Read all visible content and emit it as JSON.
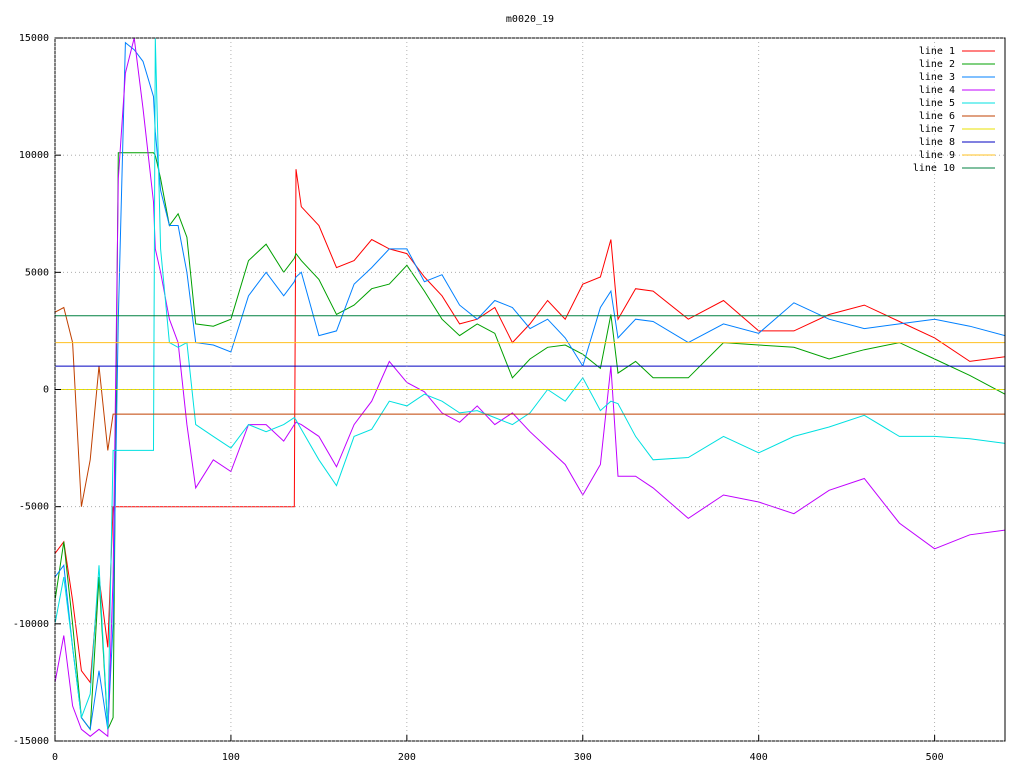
{
  "chart_data": {
    "type": "line",
    "title": "m0020_19",
    "x": [
      0,
      5,
      10,
      15,
      20,
      25,
      30,
      33,
      36,
      40,
      45,
      50,
      56,
      57,
      60,
      65,
      70,
      75,
      80,
      90,
      100,
      110,
      120,
      130,
      136,
      137,
      140,
      150,
      160,
      170,
      180,
      190,
      200,
      210,
      220,
      230,
      240,
      250,
      260,
      270,
      280,
      290,
      300,
      310,
      316,
      320,
      330,
      340,
      360,
      380,
      400,
      420,
      440,
      460,
      480,
      500,
      520,
      540
    ],
    "xlim": [
      0,
      540
    ],
    "ylim": [
      -15000,
      15000
    ],
    "xticks": [
      0,
      100,
      200,
      300,
      400,
      500
    ],
    "yticks": [
      -15000,
      -10000,
      -5000,
      0,
      5000,
      10000,
      15000
    ],
    "grid": true,
    "legend": "top-right",
    "series": [
      {
        "name": "line 1",
        "color": "#ff0000",
        "values": [
          -7000,
          -6500,
          -9000,
          -12000,
          -12500,
          -8000,
          -11000,
          -5000,
          -5000,
          -5000,
          -5000,
          -5000,
          -5000,
          -5000,
          -5000,
          -5000,
          -5000,
          -5000,
          -5000,
          -5000,
          -5000,
          -5000,
          -5000,
          -5000,
          -5000,
          9400,
          7800,
          7000,
          5200,
          5500,
          6400,
          6000,
          5800,
          4800,
          4000,
          2800,
          3000,
          3500,
          2000,
          2800,
          3800,
          3000,
          4500,
          4800,
          6400,
          3000,
          4300,
          4200,
          3000,
          3800,
          2500,
          2500,
          3200,
          3600,
          2900,
          2200,
          1200,
          1400
        ]
      },
      {
        "name": "line 2",
        "color": "#00a000",
        "values": [
          -9000,
          -6500,
          -10000,
          -14000,
          -14500,
          -8000,
          -14500,
          -14000,
          10100,
          10100,
          10100,
          10100,
          10100,
          10000,
          9000,
          7000,
          7500,
          6500,
          2800,
          2700,
          3000,
          5500,
          6200,
          5000,
          5600,
          5800,
          5500,
          4700,
          3200,
          3600,
          4300,
          4500,
          5300,
          4200,
          3000,
          2300,
          2800,
          2400,
          500,
          1300,
          1800,
          1900,
          1500,
          900,
          3200,
          700,
          1200,
          500,
          500,
          2000,
          1900,
          1800,
          1300,
          1700,
          2000,
          1300,
          600,
          -200
        ]
      },
      {
        "name": "line 3",
        "color": "#0080ff",
        "values": [
          -8000,
          -7500,
          -11000,
          -14000,
          -14500,
          -12000,
          -14500,
          -10000,
          3000,
          14800,
          14500,
          14000,
          12500,
          11000,
          8500,
          7000,
          7000,
          5000,
          2000,
          1900,
          1600,
          4000,
          5000,
          4000,
          4600,
          4800,
          5000,
          2300,
          2500,
          4500,
          5200,
          6000,
          6000,
          4600,
          4900,
          3600,
          3000,
          3800,
          3500,
          2600,
          3000,
          2200,
          1000,
          3500,
          4200,
          2200,
          3000,
          2900,
          2000,
          2800,
          2400,
          3700,
          3000,
          2600,
          2800,
          3000,
          2700,
          2300
        ]
      },
      {
        "name": "line 4",
        "color": "#c000ff",
        "values": [
          -12500,
          -10500,
          -13500,
          -14500,
          -14800,
          -14500,
          -14800,
          -8000,
          9000,
          13500,
          15000,
          12000,
          8000,
          6000,
          5000,
          3000,
          2000,
          -1500,
          -4200,
          -3000,
          -3500,
          -1500,
          -1500,
          -2200,
          -1500,
          -1400,
          -1500,
          -2000,
          -3300,
          -1500,
          -500,
          1200,
          300,
          -100,
          -1000,
          -1400,
          -700,
          -1500,
          -1000,
          -1800,
          -2500,
          -3200,
          -4500,
          -3200,
          1000,
          -3700,
          -3700,
          -4200,
          -5500,
          -4500,
          -4800,
          -5300,
          -4300,
          -3800,
          -5700,
          -6800,
          -6200,
          -6000
        ]
      },
      {
        "name": "line 5",
        "color": "#00e0e0",
        "values": [
          -10000,
          -8000,
          -11000,
          -14000,
          -13000,
          -7500,
          -14500,
          -2600,
          -2600,
          -2600,
          -2600,
          -2600,
          -2600,
          15000,
          6000,
          2000,
          1800,
          2000,
          -1500,
          -2000,
          -2500,
          -1500,
          -1800,
          -1500,
          -1200,
          -1300,
          -1700,
          -3000,
          -4100,
          -2000,
          -1700,
          -500,
          -700,
          -200,
          -500,
          -1000,
          -900,
          -1200,
          -1500,
          -1000,
          0,
          -500,
          500,
          -900,
          -500,
          -600,
          -2000,
          -3000,
          -2900,
          -2000,
          -2700,
          -2000,
          -1600,
          -1100,
          -2000,
          -2000,
          -2100,
          -2300
        ]
      },
      {
        "name": "line 6",
        "color": "#c04000",
        "values": [
          3300,
          3500,
          2000,
          -5000,
          -3000,
          1000,
          -2600,
          -1050,
          -1050,
          -1050,
          -1050,
          -1050,
          -1050,
          -1050,
          -1050,
          -1050,
          -1050,
          -1050,
          -1050,
          -1050,
          -1050,
          -1050,
          -1050,
          -1050,
          -1050,
          -1050,
          -1050,
          -1050,
          -1050,
          -1050,
          -1050,
          -1050,
          -1050,
          -1050,
          -1050,
          -1050,
          -1050,
          -1050,
          -1050,
          -1050,
          -1050,
          -1050,
          -1050,
          -1050,
          -1050,
          -1050,
          -1050,
          -1050,
          -1050,
          -1050,
          -1050,
          -1050,
          -1050,
          -1050,
          -1050,
          -1050,
          -1050,
          -1050
        ]
      },
      {
        "name": "line 7",
        "color": "#e8e000",
        "values": [
          0,
          0,
          0,
          0,
          0,
          0,
          0,
          0,
          0,
          0,
          0,
          0,
          0,
          0,
          0,
          0,
          0,
          0,
          0,
          0,
          0,
          0,
          0,
          0,
          0,
          0,
          0,
          0,
          0,
          0,
          0,
          0,
          0,
          0,
          0,
          0,
          0,
          0,
          0,
          0,
          0,
          0,
          0,
          0,
          0,
          0,
          0,
          0,
          0,
          0,
          0,
          0,
          0,
          0,
          0,
          0,
          0,
          0
        ]
      },
      {
        "name": "line 8",
        "color": "#0000c0",
        "values": [
          1000,
          1000,
          1000,
          1000,
          1000,
          1000,
          1000,
          1000,
          1000,
          1000,
          1000,
          1000,
          1000,
          1000,
          1000,
          1000,
          1000,
          1000,
          1000,
          1000,
          1000,
          1000,
          1000,
          1000,
          1000,
          1000,
          1000,
          1000,
          1000,
          1000,
          1000,
          1000,
          1000,
          1000,
          1000,
          1000,
          1000,
          1000,
          1000,
          1000,
          1000,
          1000,
          1000,
          1000,
          1000,
          1000,
          1000,
          1000,
          1000,
          1000,
          1000,
          1000,
          1000,
          1000,
          1000,
          1000,
          1000,
          1000
        ]
      },
      {
        "name": "line 9",
        "color": "#ffc020",
        "values": [
          2000,
          2000,
          2000,
          2000,
          2000,
          2000,
          2000,
          2000,
          2000,
          2000,
          2000,
          2000,
          2000,
          2000,
          2000,
          2000,
          2000,
          2000,
          2000,
          2000,
          2000,
          2000,
          2000,
          2000,
          2000,
          2000,
          2000,
          2000,
          2000,
          2000,
          2000,
          2000,
          2000,
          2000,
          2000,
          2000,
          2000,
          2000,
          2000,
          2000,
          2000,
          2000,
          2000,
          2000,
          2000,
          2000,
          2000,
          2000,
          2000,
          2000,
          2000,
          2000,
          2000,
          2000,
          2000,
          2000,
          2000,
          2000
        ]
      },
      {
        "name": "line 10",
        "color": "#008040",
        "values": [
          3150,
          3150,
          3150,
          3150,
          3150,
          3150,
          3150,
          3150,
          3150,
          3150,
          3150,
          3150,
          3150,
          3150,
          3150,
          3150,
          3150,
          3150,
          3150,
          3150,
          3150,
          3150,
          3150,
          3150,
          3150,
          3150,
          3150,
          3150,
          3150,
          3150,
          3150,
          3150,
          3150,
          3150,
          3150,
          3150,
          3150,
          3150,
          3150,
          3150,
          3150,
          3150,
          3150,
          3150,
          3150,
          3150,
          3150,
          3150,
          3150,
          3150,
          3150,
          3150,
          3150,
          3150,
          3150,
          3150,
          3150,
          3150
        ]
      }
    ]
  }
}
